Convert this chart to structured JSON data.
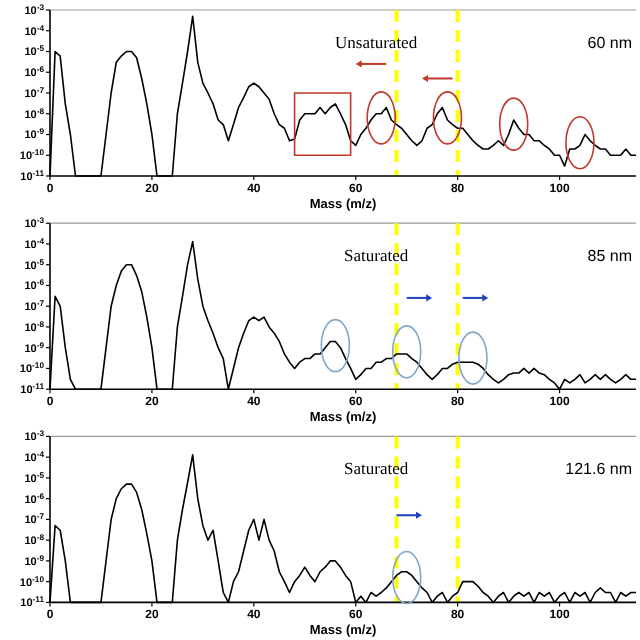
{
  "chart_data": [
    {
      "type": "line",
      "xlabel": "Mass (m/z)",
      "log": true,
      "xlim": [
        0,
        115
      ],
      "xticks": [
        0,
        20,
        40,
        60,
        80,
        100
      ],
      "ylim": [
        1e-11,
        0.001
      ],
      "yticks": [
        {
          "value": 0.001,
          "label": "10$^{-3}$"
        },
        {
          "value": 0.0001,
          "label": "10$^{-4}$"
        },
        {
          "value": 1e-05,
          "label": "10$^{-5}$"
        },
        {
          "value": 1e-06,
          "label": "10$^{-6}$"
        },
        {
          "value": 1e-07,
          "label": "10$^{-7}$"
        },
        {
          "value": 1e-08,
          "label": "10$^{-8}$"
        },
        {
          "value": 1e-09,
          "label": "10$^{-9}$"
        },
        {
          "value": 1e-10,
          "label": "10$^{-10}$"
        },
        {
          "value": 1e-11,
          "label": "10$^{-11}$"
        }
      ],
      "x": [
        0,
        1,
        2,
        3,
        4,
        5,
        6,
        7,
        8,
        9,
        10,
        11,
        12,
        13,
        14,
        15,
        16,
        17,
        18,
        19,
        20,
        21,
        22,
        23,
        24,
        25,
        26,
        27,
        28,
        29,
        30,
        31,
        32,
        33,
        34,
        35,
        36,
        37,
        38,
        39,
        40,
        41,
        42,
        43,
        44,
        45,
        46,
        47,
        48,
        49,
        50,
        51,
        52,
        53,
        54,
        55,
        56,
        57,
        58,
        59,
        60,
        61,
        62,
        63,
        64,
        65,
        66,
        67,
        68,
        69,
        70,
        71,
        72,
        73,
        74,
        75,
        76,
        77,
        78,
        79,
        80,
        81,
        82,
        83,
        84,
        85,
        86,
        87,
        88,
        89,
        90,
        91,
        92,
        93,
        94,
        95,
        96,
        97,
        98,
        99,
        100,
        101,
        102,
        103,
        104,
        105,
        106,
        107,
        108,
        109,
        110,
        111,
        112,
        113,
        114,
        115
      ],
      "series": [
        {
          "color": "#000000",
          "values": [
            1e-11,
            1e-05,
            6e-06,
            3e-08,
            1e-09,
            1e-11,
            1e-11,
            1e-11,
            1e-11,
            1e-11,
            1e-11,
            1e-09,
            1e-07,
            3e-06,
            6e-06,
            1e-05,
            1e-05,
            5e-06,
            5e-07,
            3e-08,
            1e-09,
            1e-11,
            1e-11,
            1e-11,
            1e-11,
            1e-08,
            3e-07,
            1e-05,
            0.0005,
            3e-06,
            3e-07,
            1e-07,
            3e-08,
            5e-09,
            3e-09,
            5e-10,
            3e-09,
            2e-08,
            6e-08,
            2e-07,
            3e-07,
            2e-07,
            1e-07,
            5e-08,
            1e-08,
            3e-09,
            2e-09,
            5e-10,
            6e-10,
            5e-09,
            1e-08,
            1e-08,
            1e-08,
            2e-08,
            1e-08,
            2e-08,
            3e-08,
            1e-08,
            3e-09,
            5e-10,
            3e-10,
            1e-09,
            2e-09,
            5e-09,
            1e-08,
            1e-08,
            2e-08,
            5e-09,
            3e-09,
            2e-09,
            1e-09,
            5e-10,
            3e-10,
            5e-10,
            2e-09,
            3e-09,
            1e-08,
            2e-08,
            5e-09,
            3e-09,
            2e-09,
            2e-09,
            1e-09,
            5e-10,
            3e-10,
            2e-10,
            2e-10,
            3e-10,
            5e-10,
            3e-10,
            1e-09,
            5e-09,
            2e-09,
            1e-09,
            1e-09,
            5e-10,
            5e-10,
            3e-10,
            2e-10,
            1e-10,
            1e-10,
            3e-11,
            2e-10,
            2e-10,
            3e-10,
            1e-09,
            5e-10,
            3e-10,
            2e-10,
            2e-10,
            1e-10,
            1e-10,
            1e-10,
            2e-10,
            1e-10,
            1e-10
          ]
        }
      ],
      "ref_lines": [
        {
          "axis": "x",
          "value": 68,
          "color": "#ffff00",
          "line_style": "dashed"
        },
        {
          "axis": "x",
          "value": 80,
          "color": "#ffff00",
          "line_style": "dashed"
        }
      ],
      "annotations": [
        "Unsaturated",
        "60 nm"
      ]
    },
    {
      "type": "line",
      "xlabel": "Mass (m/z)",
      "log": true,
      "xlim": [
        0,
        115
      ],
      "xticks": [
        0,
        20,
        40,
        60,
        80,
        100
      ],
      "ylim": [
        1e-11,
        0.001
      ],
      "yticks": [
        {
          "value": 0.001,
          "label": "10$^{-3}$"
        },
        {
          "value": 0.0001,
          "label": "10$^{-4}$"
        },
        {
          "value": 1e-05,
          "label": "10$^{-5}$"
        },
        {
          "value": 1e-06,
          "label": "10$^{-6}$"
        },
        {
          "value": 1e-07,
          "label": "10$^{-7}$"
        },
        {
          "value": 1e-08,
          "label": "10$^{-8}$"
        },
        {
          "value": 1e-09,
          "label": "10$^{-9}$"
        },
        {
          "value": 1e-10,
          "label": "10$^{-10}$"
        },
        {
          "value": 1e-11,
          "label": "10$^{-11}$"
        }
      ],
      "x": [
        0,
        1,
        2,
        3,
        4,
        5,
        6,
        7,
        8,
        9,
        10,
        11,
        12,
        13,
        14,
        15,
        16,
        17,
        18,
        19,
        20,
        21,
        22,
        23,
        24,
        25,
        26,
        27,
        28,
        29,
        30,
        31,
        32,
        33,
        34,
        35,
        36,
        37,
        38,
        39,
        40,
        41,
        42,
        43,
        44,
        45,
        46,
        47,
        48,
        49,
        50,
        51,
        52,
        53,
        54,
        55,
        56,
        57,
        58,
        59,
        60,
        61,
        62,
        63,
        64,
        65,
        66,
        67,
        68,
        69,
        70,
        71,
        72,
        73,
        74,
        75,
        76,
        77,
        78,
        79,
        80,
        81,
        82,
        83,
        84,
        85,
        86,
        87,
        88,
        89,
        90,
        91,
        92,
        93,
        94,
        95,
        96,
        97,
        98,
        99,
        100,
        101,
        102,
        103,
        104,
        105,
        106,
        107,
        108,
        109,
        110,
        111,
        112,
        113,
        114,
        115
      ],
      "series": [
        {
          "color": "#000000",
          "values": [
            1e-11,
            3e-07,
            1e-07,
            1e-09,
            3e-11,
            1e-11,
            1e-11,
            1e-11,
            1e-11,
            1e-11,
            1e-11,
            1e-09,
            1e-07,
            1e-06,
            5e-06,
            1e-05,
            1e-05,
            3e-06,
            5e-07,
            3e-08,
            1e-09,
            1e-11,
            1e-11,
            1e-11,
            1e-11,
            1e-08,
            3e-07,
            1e-05,
            0.00013,
            2e-06,
            1e-07,
            2e-08,
            5e-09,
            1e-09,
            3e-10,
            1e-11,
            1e-10,
            1e-09,
            5e-09,
            2e-08,
            3e-08,
            2e-08,
            3e-08,
            1e-08,
            5e-09,
            2e-09,
            5e-10,
            2e-10,
            1e-10,
            2e-10,
            3e-10,
            3e-10,
            5e-10,
            5e-10,
            1e-09,
            2e-09,
            2e-09,
            1e-09,
            3e-10,
            1e-10,
            3e-11,
            5e-11,
            1e-10,
            1e-10,
            2e-10,
            2e-10,
            3e-10,
            3e-10,
            5e-10,
            5e-10,
            5e-10,
            3e-10,
            2e-10,
            1e-10,
            5e-11,
            3e-11,
            5e-11,
            1e-10,
            1e-10,
            1.6e-10,
            2e-10,
            2e-10,
            2e-10,
            2e-10,
            1.6e-10,
            1e-10,
            5e-11,
            3e-11,
            2e-11,
            3e-11,
            5e-11,
            6e-11,
            6e-11,
            1e-10,
            6e-11,
            1e-10,
            6e-11,
            5e-11,
            3e-11,
            2e-11,
            1e-11,
            3e-11,
            2e-11,
            3e-11,
            5e-11,
            2e-11,
            3e-11,
            5e-11,
            3e-11,
            5e-11,
            3e-11,
            2e-11,
            3e-11,
            5e-11,
            3e-11,
            3e-11
          ]
        }
      ],
      "ref_lines": [
        {
          "axis": "x",
          "value": 68,
          "color": "#ffff00",
          "line_style": "dashed"
        },
        {
          "axis": "x",
          "value": 80,
          "color": "#ffff00",
          "line_style": "dashed"
        }
      ],
      "annotations": [
        "Saturated",
        "85 nm"
      ]
    },
    {
      "type": "line",
      "xlabel": "Mass (m/z)",
      "log": true,
      "xlim": [
        0,
        115
      ],
      "xticks": [
        0,
        20,
        40,
        60,
        80,
        100
      ],
      "ylim": [
        1e-11,
        0.001
      ],
      "yticks": [
        {
          "value": 0.001,
          "label": "10$^{-3}$"
        },
        {
          "value": 0.0001,
          "label": "10$^{-4}$"
        },
        {
          "value": 1e-05,
          "label": "10$^{-5}$"
        },
        {
          "value": 1e-06,
          "label": "10$^{-6}$"
        },
        {
          "value": 1e-07,
          "label": "10$^{-7}$"
        },
        {
          "value": 1e-08,
          "label": "10$^{-8}$"
        },
        {
          "value": 1e-09,
          "label": "10$^{-9}$"
        },
        {
          "value": 1e-10,
          "label": "10$^{-10}$"
        },
        {
          "value": 1e-11,
          "label": "10$^{-11}$"
        }
      ],
      "x": [
        0,
        1,
        2,
        3,
        4,
        5,
        6,
        7,
        8,
        9,
        10,
        11,
        12,
        13,
        14,
        15,
        16,
        17,
        18,
        19,
        20,
        21,
        22,
        23,
        24,
        25,
        26,
        27,
        28,
        29,
        30,
        31,
        32,
        33,
        34,
        35,
        36,
        37,
        38,
        39,
        40,
        41,
        42,
        43,
        44,
        45,
        46,
        47,
        48,
        49,
        50,
        51,
        52,
        53,
        54,
        55,
        56,
        57,
        58,
        59,
        60,
        61,
        62,
        63,
        64,
        65,
        66,
        67,
        68,
        69,
        70,
        71,
        72,
        73,
        74,
        75,
        76,
        77,
        78,
        79,
        80,
        81,
        82,
        83,
        84,
        85,
        86,
        87,
        88,
        89,
        90,
        91,
        92,
        93,
        94,
        95,
        96,
        97,
        98,
        99,
        100,
        101,
        102,
        103,
        104,
        105,
        106,
        107,
        108,
        109,
        110,
        111,
        112,
        113,
        114,
        115
      ],
      "series": [
        {
          "color": "#000000",
          "values": [
            1e-11,
            5e-08,
            3e-08,
            1e-09,
            1e-11,
            1e-11,
            1e-11,
            1e-11,
            1e-11,
            1e-11,
            1e-11,
            1e-09,
            1e-07,
            1e-06,
            3e-06,
            5e-06,
            5e-06,
            2e-06,
            3e-07,
            2e-08,
            1e-09,
            1e-11,
            1e-11,
            1e-11,
            1e-11,
            1e-08,
            3e-07,
            6e-06,
            0.00013,
            1e-06,
            5e-08,
            1e-08,
            3e-08,
            1e-09,
            3e-11,
            1e-11,
            1e-10,
            3e-10,
            3e-09,
            3e-08,
            1e-07,
            1e-08,
            1e-07,
            1e-08,
            3e-09,
            3e-10,
            1e-10,
            3e-11,
            1e-10,
            2e-10,
            5e-10,
            2e-10,
            1e-10,
            3e-10,
            5e-10,
            1e-09,
            1e-09,
            5e-10,
            2e-10,
            1e-10,
            1e-11,
            2e-11,
            1e-11,
            3e-11,
            2e-11,
            3e-11,
            5e-11,
            1e-10,
            2e-10,
            3e-10,
            3e-10,
            2e-10,
            1e-10,
            5e-11,
            3e-11,
            1e-11,
            2e-11,
            3e-11,
            1e-11,
            2e-11,
            3e-11,
            1e-10,
            1e-10,
            1e-10,
            6e-11,
            3e-11,
            2e-11,
            1e-11,
            2e-11,
            3e-11,
            1e-11,
            2e-11,
            3e-11,
            2e-11,
            3e-11,
            1e-11,
            3e-11,
            2e-11,
            3e-11,
            1e-11,
            2e-11,
            3e-11,
            1e-11,
            3e-11,
            2e-11,
            3e-11,
            1e-11,
            3e-11,
            5e-11,
            3e-11,
            3e-11,
            1e-11,
            3e-11,
            2e-11,
            3e-11,
            3e-11
          ]
        }
      ],
      "ref_lines": [
        {
          "axis": "x",
          "value": 68,
          "color": "#ffff00",
          "line_style": "dashed"
        },
        {
          "axis": "x",
          "value": 80,
          "color": "#ffff00",
          "line_style": "dashed"
        }
      ],
      "annotations": [
        "Saturated",
        "121.6 nm"
      ]
    }
  ]
}
